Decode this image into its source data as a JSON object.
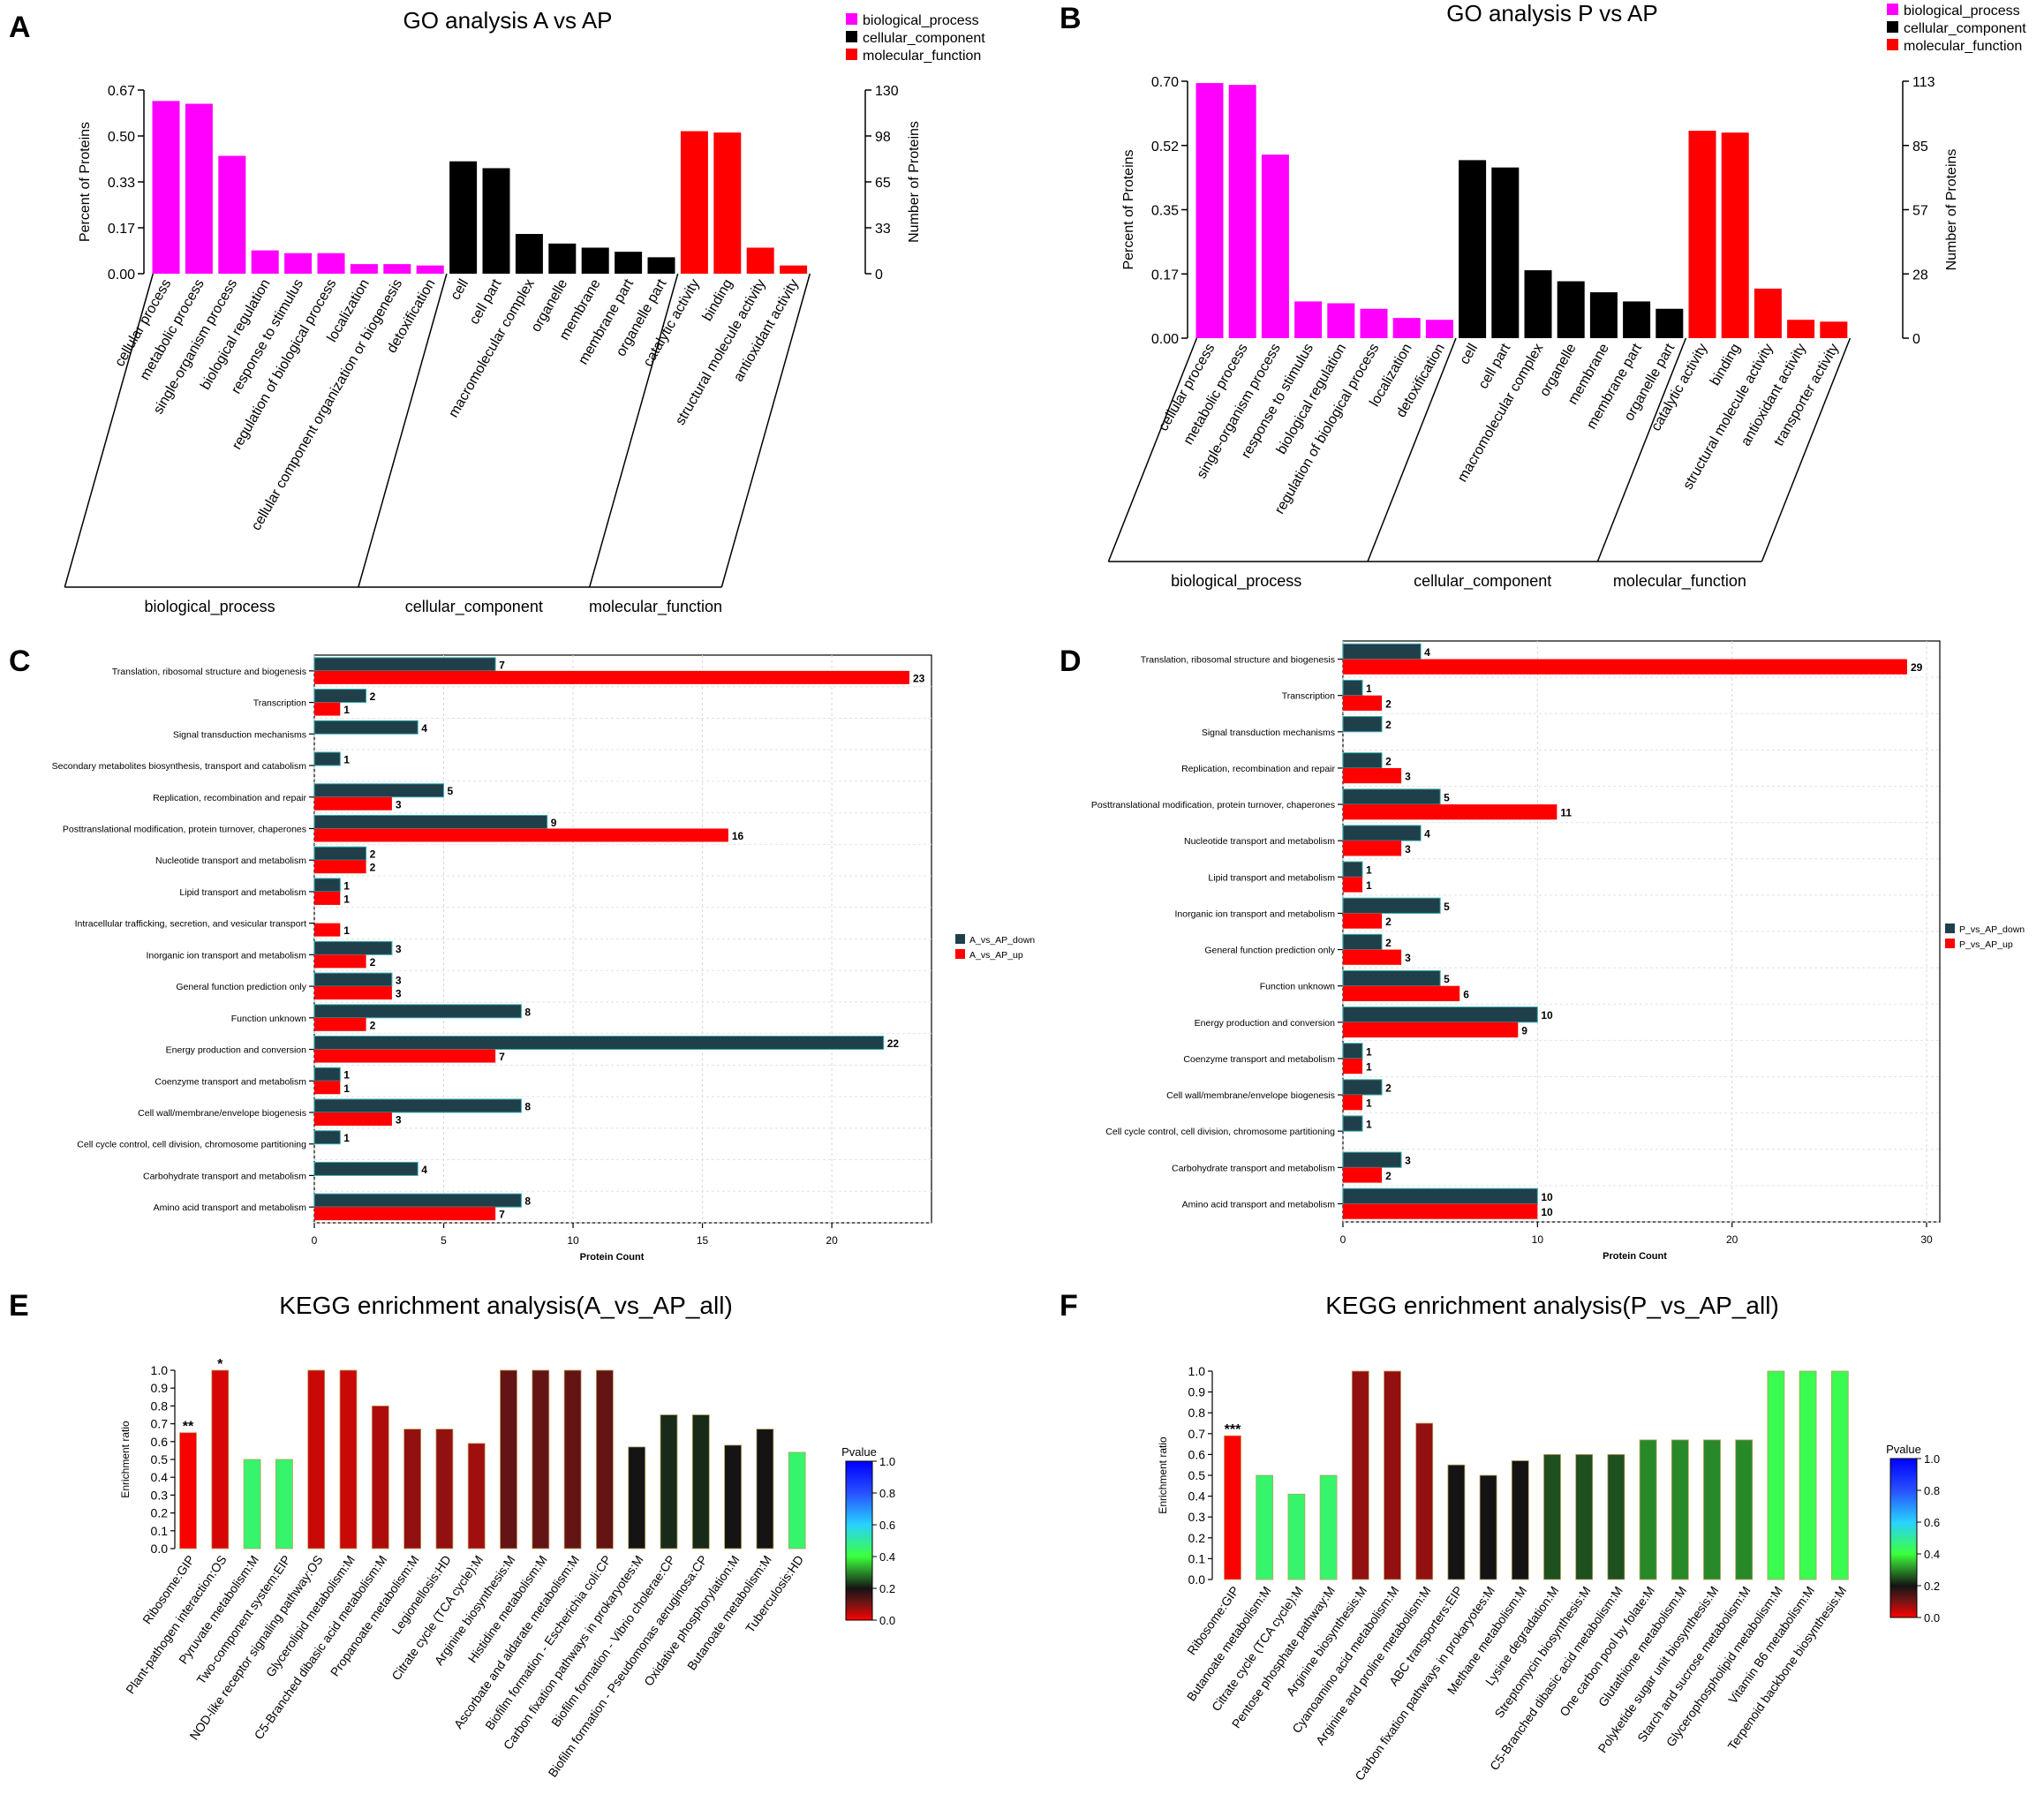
{
  "figure": {
    "panel_labels": [
      "A",
      "B",
      "C",
      "D",
      "E",
      "F"
    ],
    "colors": {
      "biological_process": "#ff00ff",
      "cellular_component": "#000000",
      "molecular_function": "#ff0000",
      "down": "#1f3f4a",
      "up": "#ff0000"
    }
  },
  "chart_data": [
    {
      "id": "A",
      "type": "bar",
      "title": "GO analysis A vs AP",
      "ylabel": "Percent of Proteins",
      "ylabel_right": "Number of Proteins",
      "yticks": [
        "0.00",
        "0.17",
        "0.33",
        "0.50",
        "0.67"
      ],
      "yticks_right": [
        "0",
        "33",
        "65",
        "98",
        "130"
      ],
      "ylim": [
        0,
        0.67
      ],
      "legend": [
        "biological_process",
        "cellular_component",
        "molecular_function"
      ],
      "groups": [
        {
          "name": "biological_process",
          "categories": [
            "cellular process",
            "metabolic process",
            "single-organism process",
            "biological regulation",
            "response to stimulus",
            "regulation of biological process",
            "localization",
            "cellular component organization or biogenesis",
            "detoxification"
          ],
          "values": [
            0.63,
            0.62,
            0.43,
            0.085,
            0.075,
            0.075,
            0.035,
            0.035,
            0.03
          ]
        },
        {
          "name": "cellular_component",
          "categories": [
            "cell",
            "cell part",
            "macromolecular complex",
            "organelle",
            "membrane",
            "membrane part",
            "organelle part"
          ],
          "values": [
            0.41,
            0.385,
            0.145,
            0.11,
            0.095,
            0.08,
            0.06
          ]
        },
        {
          "name": "molecular_function",
          "categories": [
            "catalytic activity",
            "binding",
            "structural molecule activity",
            "antioxidant activity"
          ],
          "values": [
            0.52,
            0.515,
            0.095,
            0.03
          ]
        }
      ]
    },
    {
      "id": "B",
      "type": "bar",
      "title": "GO analysis P vs AP",
      "ylabel": "Percent of Proteins",
      "ylabel_right": "Number of Proteins",
      "yticks": [
        "0.00",
        "0.17",
        "0.35",
        "0.52",
        "0.70"
      ],
      "yticks_right": [
        "0",
        "28",
        "57",
        "85",
        "113"
      ],
      "ylim": [
        0,
        0.7
      ],
      "legend": [
        "biological_process",
        "cellular_component",
        "molecular_function"
      ],
      "groups": [
        {
          "name": "biological_process",
          "categories": [
            "cellular process",
            "metabolic process",
            "single-organism process",
            "response to stimulus",
            "biological regulation",
            "regulation of biological process",
            "localization",
            "detoxification"
          ],
          "values": [
            0.695,
            0.69,
            0.5,
            0.1,
            0.095,
            0.08,
            0.055,
            0.05
          ]
        },
        {
          "name": "cellular_component",
          "categories": [
            "cell",
            "cell part",
            "macromolecular complex",
            "organelle",
            "membrane",
            "membrane part",
            "organelle part"
          ],
          "values": [
            0.485,
            0.465,
            0.185,
            0.155,
            0.125,
            0.1,
            0.08
          ]
        },
        {
          "name": "molecular_function",
          "categories": [
            "catalytic activity",
            "binding",
            "structural molecule activity",
            "antioxidant activity",
            "transporter activity"
          ],
          "values": [
            0.565,
            0.56,
            0.135,
            0.05,
            0.045
          ]
        }
      ]
    },
    {
      "id": "C",
      "type": "bar",
      "orientation": "horizontal",
      "xlabel": "Protein Count",
      "xlim": [
        0,
        23
      ],
      "xticks": [
        0,
        5,
        10,
        15,
        20
      ],
      "categories": [
        "Translation, ribosomal structure and biogenesis",
        "Transcription",
        "Signal transduction mechanisms",
        "Secondary metabolites biosynthesis, transport and catabolism",
        "Replication, recombination and repair",
        "Posttranslational modification, protein turnover, chaperones",
        "Nucleotide transport and metabolism",
        "Lipid transport and metabolism",
        "Intracellular trafficking, secretion, and vesicular transport",
        "Inorganic ion transport and metabolism",
        "General function prediction only",
        "Function unknown",
        "Energy production and conversion",
        "Coenzyme transport and metabolism",
        "Cell wall/membrane/envelope biogenesis",
        "Cell cycle control, cell division, chromosome partitioning",
        "Carbohydrate transport and metabolism",
        "Amino acid transport and metabolism"
      ],
      "series": [
        {
          "name": "A_vs_AP_down",
          "values": [
            7,
            2,
            4,
            1,
            5,
            9,
            2,
            1,
            null,
            3,
            3,
            8,
            22,
            1,
            8,
            1,
            4,
            8
          ]
        },
        {
          "name": "A_vs_AP_up",
          "values": [
            23,
            1,
            null,
            null,
            3,
            16,
            2,
            1,
            1,
            2,
            3,
            2,
            7,
            1,
            3,
            null,
            null,
            7
          ]
        }
      ]
    },
    {
      "id": "D",
      "type": "bar",
      "orientation": "horizontal",
      "xlabel": "Protein Count",
      "xlim": [
        0,
        30
      ],
      "xticks": [
        0,
        10,
        20,
        30
      ],
      "categories": [
        "Translation, ribosomal structure and biogenesis",
        "Transcription",
        "Signal transduction mechanisms",
        "Replication, recombination and repair",
        "Posttranslational modification, protein turnover, chaperones",
        "Nucleotide transport and metabolism",
        "Lipid transport and metabolism",
        "Inorganic ion transport and metabolism",
        "General function prediction only",
        "Function unknown",
        "Energy production and conversion",
        "Coenzyme transport and metabolism",
        "Cell wall/membrane/envelope biogenesis",
        "Cell cycle control, cell division, chromosome partitioning",
        "Carbohydrate transport and metabolism",
        "Amino acid transport and metabolism"
      ],
      "series": [
        {
          "name": "P_vs_AP_down",
          "values": [
            4,
            1,
            2,
            2,
            5,
            4,
            1,
            5,
            2,
            5,
            10,
            1,
            2,
            1,
            3,
            10
          ]
        },
        {
          "name": "P_vs_AP_up",
          "values": [
            29,
            2,
            null,
            3,
            11,
            3,
            1,
            2,
            3,
            6,
            9,
            1,
            1,
            null,
            2,
            10
          ]
        }
      ]
    },
    {
      "id": "E",
      "type": "bar",
      "title": "KEGG enrichment analysis(A_vs_AP_all)",
      "ylabel": "Enrichment ratio",
      "ylim": [
        0,
        1.0
      ],
      "yticks": [
        "0.0",
        "0.1",
        "0.2",
        "0.3",
        "0.4",
        "0.5",
        "0.6",
        "0.7",
        "0.8",
        "0.9",
        "1.0"
      ],
      "colorbar": {
        "label": "Pvalue",
        "ticks": [
          "0.0",
          "0.2",
          "0.4",
          "0.6",
          "0.8",
          "1.0"
        ]
      },
      "categories": [
        "Ribosome:GIP",
        "Plant-pathogen interaction:OS",
        "Pyruvate metabolism:M",
        "Two-component system:EIP",
        "NOD-like receptor signaling pathway:OS",
        "Glycerolipid metabolism:M",
        "C5-Branched dibasic acid metabolism:M",
        "Propanoate metabolism:M",
        "Legionellosis:HD",
        "Citrate cycle (TCA cycle):M",
        "Arginine biosynthesis:M",
        "Histidine metabolism:M",
        "Ascorbate and aldarate metabolism:M",
        "Biofilm formation - Escherichia coli:CP",
        "Carbon fixation pathways in prokaryotes:M",
        "Biofilm formation - Vibrio cholerae:CP",
        "Biofilm formation - Pseudomonas aeruginosa:CP",
        "Oxidative phosphorylation:M",
        "Butanoate metabolism:M",
        "Tuberculosis:HD"
      ],
      "values": [
        0.65,
        1.0,
        0.5,
        0.5,
        1.0,
        1.0,
        0.8,
        0.67,
        0.67,
        0.59,
        1.0,
        1.0,
        1.0,
        1.0,
        0.57,
        0.75,
        0.75,
        0.58,
        0.67,
        0.54
      ],
      "pvalues": [
        0.005,
        0.03,
        0.45,
        0.45,
        0.04,
        0.04,
        0.06,
        0.08,
        0.08,
        0.07,
        0.12,
        0.12,
        0.12,
        0.12,
        0.2,
        0.22,
        0.22,
        0.2,
        0.2,
        0.45
      ],
      "significance": [
        "**",
        "*",
        "",
        "",
        "",
        "",
        "",
        "",
        "",
        "",
        "",
        "",
        "",
        "",
        "",
        "",
        "",
        "",
        "",
        ""
      ]
    },
    {
      "id": "F",
      "type": "bar",
      "title": "KEGG enrichment analysis(P_vs_AP_all)",
      "ylabel": "Enrichment ratio",
      "ylim": [
        0,
        1.0
      ],
      "yticks": [
        "0.0",
        "0.1",
        "0.2",
        "0.3",
        "0.4",
        "0.5",
        "0.6",
        "0.7",
        "0.8",
        "0.9",
        "1.0"
      ],
      "colorbar": {
        "label": "Pvalue",
        "ticks": [
          "0.0",
          "0.2",
          "0.4",
          "0.6",
          "0.8",
          "1.0"
        ]
      },
      "categories": [
        "Ribosome:GIP",
        "Butanoate metabolism:M",
        "Citrate cycle (TCA cycle):M",
        "Pentose phosphate pathway:M",
        "Arginine biosynthesis:M",
        "Cyanoamino acid metabolism:M",
        "Arginine and proline metabolism:M",
        "ABC transporters:EIP",
        "Carbon fixation pathways in prokaryotes:M",
        "Methane metabolism:M",
        "Lysine degradation:M",
        "Streptomycin biosynthesis:M",
        "C5-Branched dibasic acid metabolism:M",
        "One carbon pool by folate:M",
        "Glutathione metabolism:M",
        "Polyketide sugar unit biosynthesis:M",
        "Starch and sucrose metabolism:M",
        "Glycerophospholipid metabolism:M",
        "Vitamin B6 metabolism:M",
        "Terpenoid backbone biosynthesis:M"
      ],
      "values": [
        0.69,
        0.5,
        0.41,
        0.5,
        1.0,
        1.0,
        0.75,
        0.55,
        0.5,
        0.57,
        0.6,
        0.6,
        0.6,
        0.67,
        0.67,
        0.67,
        0.67,
        1.0,
        1.0,
        1.0
      ],
      "pvalues": [
        0.0005,
        0.45,
        0.45,
        0.45,
        0.08,
        0.08,
        0.08,
        0.2,
        0.2,
        0.2,
        0.25,
        0.25,
        0.25,
        0.3,
        0.3,
        0.3,
        0.3,
        0.42,
        0.42,
        0.42
      ],
      "significance": [
        "***",
        "",
        "",
        "",
        "",
        "",
        "",
        "",
        "",
        "",
        "",
        "",
        "",
        "",
        "",
        "",
        "",
        "",
        "",
        ""
      ]
    }
  ]
}
